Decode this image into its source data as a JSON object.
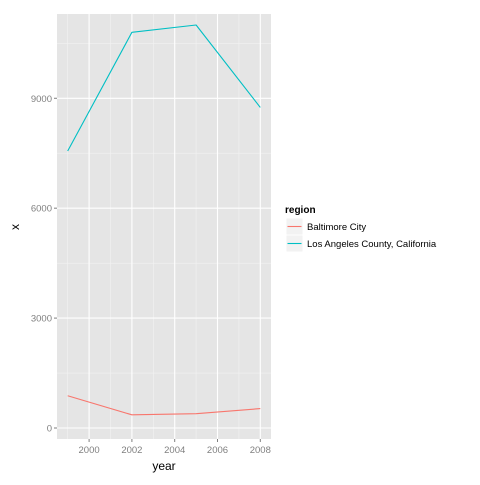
{
  "chart_data": {
    "type": "line",
    "xlabel": "year",
    "ylabel": "x",
    "xlim": [
      1998.5,
      2008.5
    ],
    "ylim": [
      -300,
      11300
    ],
    "x_ticks": [
      2000,
      2002,
      2004,
      2006,
      2008
    ],
    "y_ticks": [
      0,
      3000,
      6000,
      9000
    ],
    "x_tick_labels": [
      "2000",
      "2002",
      "2004",
      "2006",
      "2008"
    ],
    "y_tick_labels": [
      "0",
      "3000",
      "6000",
      "9000"
    ],
    "grid": true,
    "legend": {
      "title": "region",
      "position": "right"
    },
    "series": [
      {
        "name": "Baltimore City",
        "color": "#F8766D",
        "x": [
          1999,
          2002,
          2005,
          2008
        ],
        "values": [
          880,
          360,
          390,
          530
        ]
      },
      {
        "name": "Los Angeles County, California",
        "color": "#00BFC4",
        "x": [
          1999,
          2002,
          2005,
          2008
        ],
        "values": [
          7560,
          10800,
          11000,
          8750
        ]
      }
    ]
  }
}
